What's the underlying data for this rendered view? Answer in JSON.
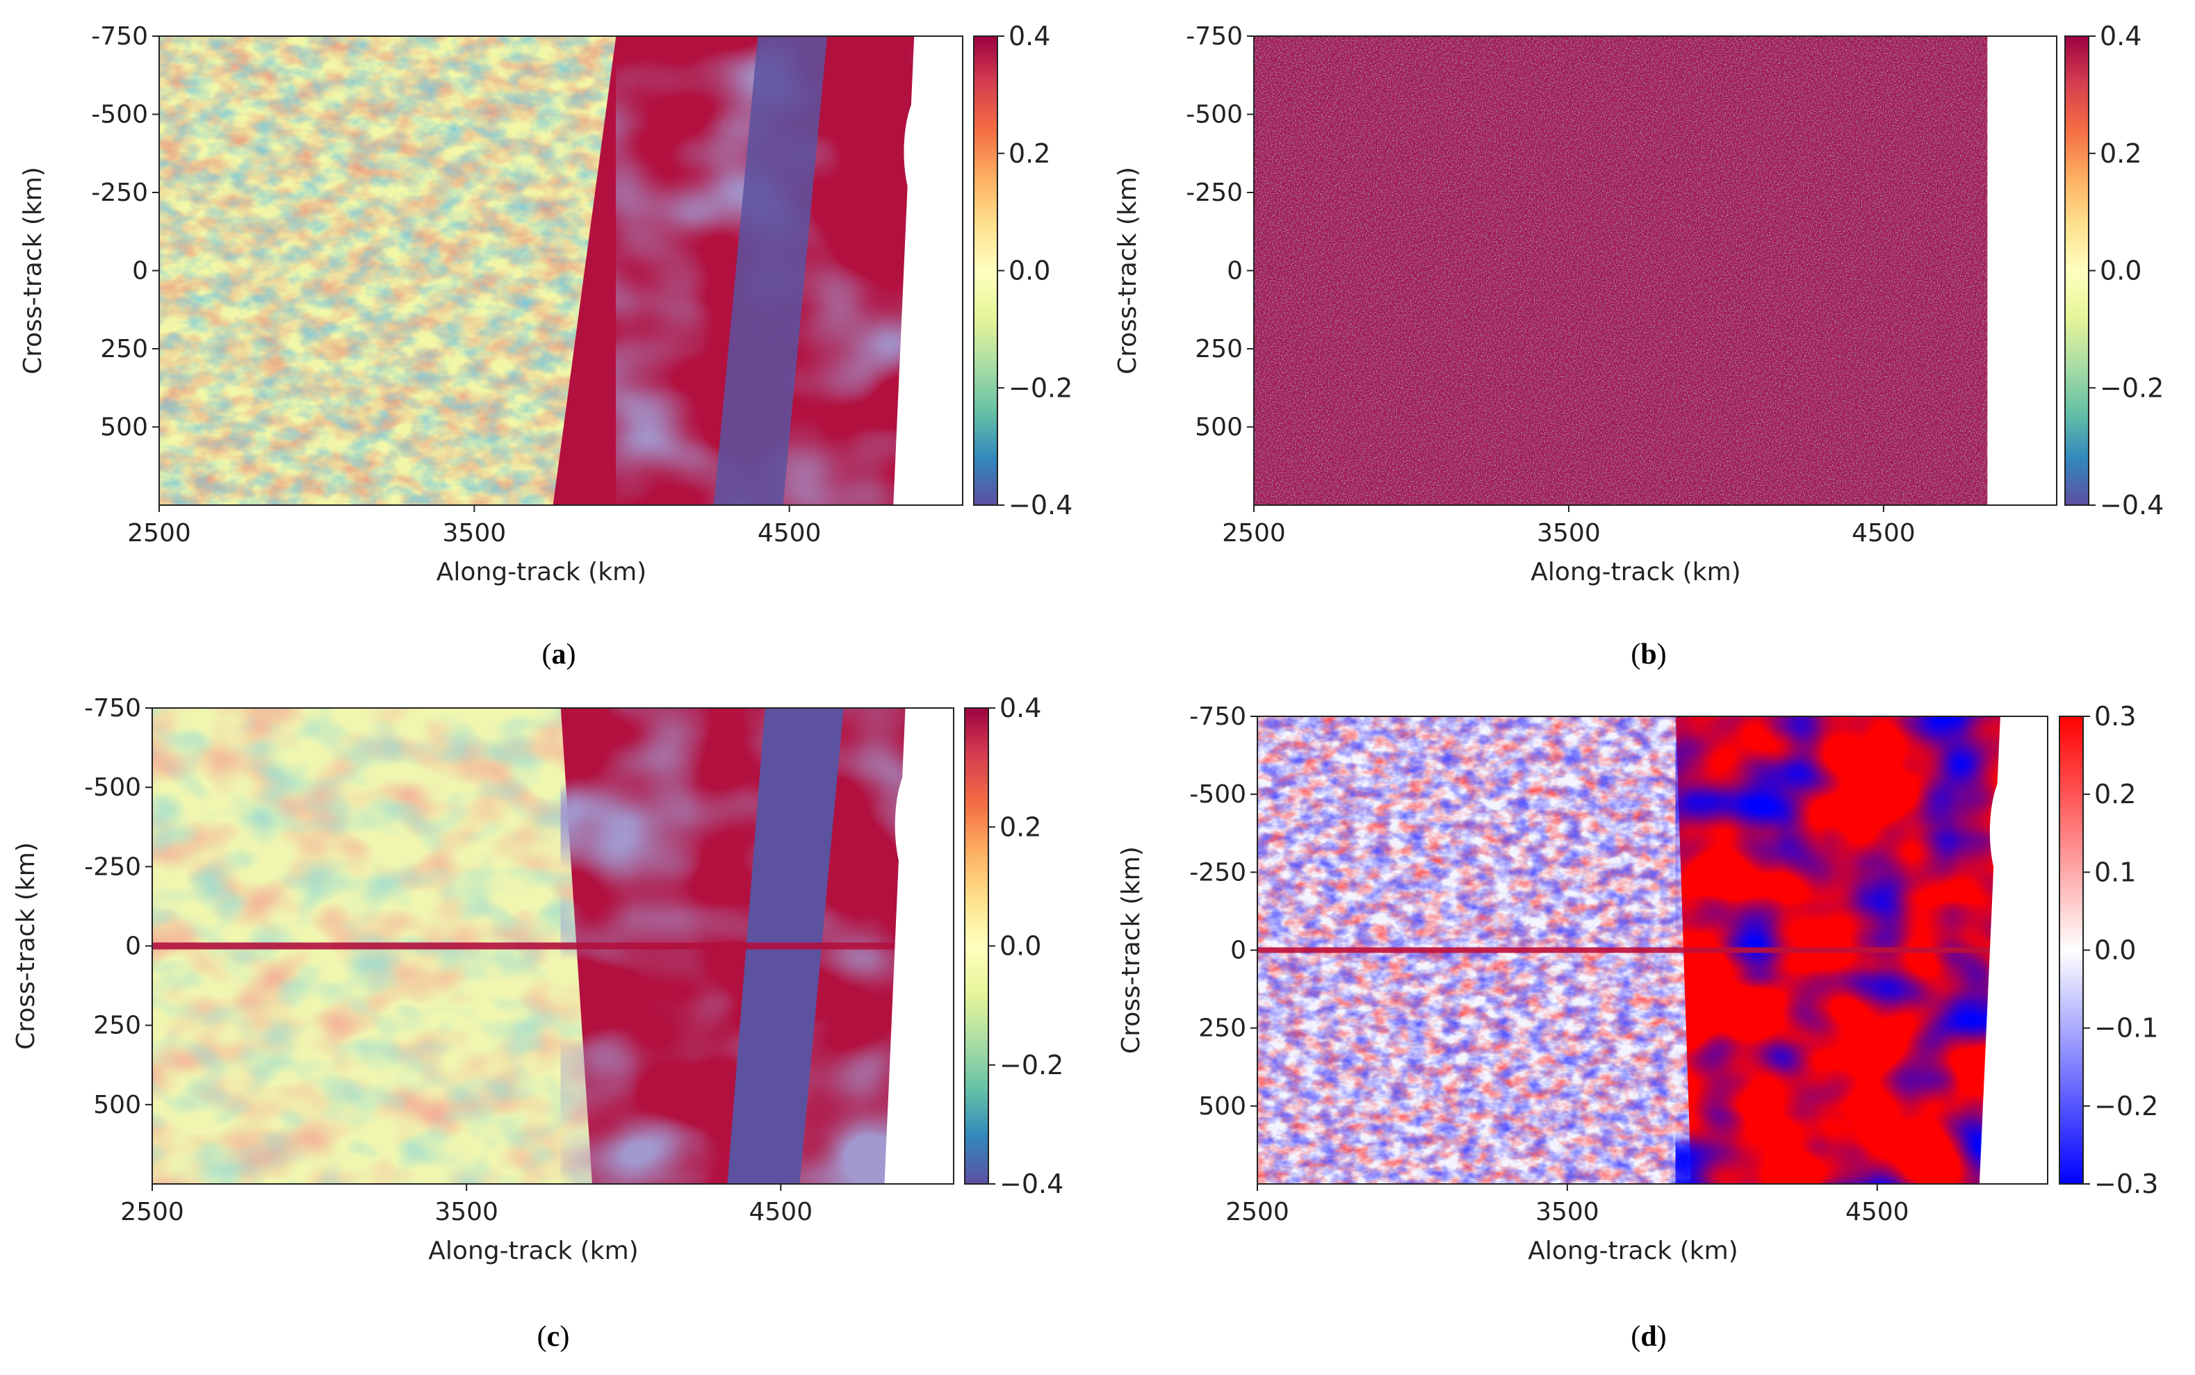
{
  "chart_data": [
    {
      "type": "heatmap",
      "panel_label": "a",
      "xlabel": "Along-track (km)",
      "ylabel": "Cross-track (km)",
      "xlim": [
        2500,
        5050
      ],
      "ylim": [
        -750,
        750
      ],
      "xticks": [
        "2500",
        "3500",
        "4500"
      ],
      "yticks": [
        "-750",
        "-500",
        "-250",
        "0",
        "250",
        "500"
      ],
      "colorbar": {
        "min": -0.4,
        "max": 0.4,
        "colormap": "Spectral_r",
        "ticks": [
          "0.4",
          "0.2",
          "0.0",
          "−0.2",
          "−0.4"
        ]
      }
    },
    {
      "type": "heatmap",
      "panel_label": "b",
      "xlabel": "Along-track (km)",
      "ylabel": "Cross-track (km)",
      "xlim": [
        2500,
        5050
      ],
      "ylim": [
        -750,
        750
      ],
      "xticks": [
        "2500",
        "3500",
        "4500"
      ],
      "yticks": [
        "-750",
        "-500",
        "-250",
        "0",
        "250",
        "500"
      ],
      "colorbar": {
        "min": -0.4,
        "max": 0.4,
        "colormap": "Spectral_r",
        "ticks": [
          "0.4",
          "0.2",
          "0.0",
          "−0.2",
          "−0.4"
        ]
      }
    },
    {
      "type": "heatmap",
      "panel_label": "c",
      "xlabel": "Along-track (km)",
      "ylabel": "Cross-track (km)",
      "xlim": [
        2500,
        5050
      ],
      "ylim": [
        -750,
        750
      ],
      "xticks": [
        "2500",
        "3500",
        "4500"
      ],
      "yticks": [
        "-750",
        "-500",
        "-250",
        "0",
        "250",
        "500"
      ],
      "colorbar": {
        "min": -0.4,
        "max": 0.4,
        "colormap": "Spectral_r",
        "ticks": [
          "0.4",
          "0.2",
          "0.0",
          "−0.2",
          "−0.4"
        ]
      }
    },
    {
      "type": "heatmap",
      "panel_label": "d",
      "xlabel": "Along-track (km)",
      "ylabel": "Cross-track (km)",
      "xlim": [
        2500,
        5050
      ],
      "ylim": [
        -750,
        750
      ],
      "xticks": [
        "2500",
        "3500",
        "4500"
      ],
      "yticks": [
        "-750",
        "-500",
        "-250",
        "0",
        "250",
        "500"
      ],
      "colorbar": {
        "min": -0.3,
        "max": 0.3,
        "colormap": "bwr",
        "ticks": [
          "0.3",
          "0.2",
          "0.1",
          "0.0",
          "−0.1",
          "−0.2",
          "−0.3"
        ]
      }
    }
  ],
  "colors": {
    "deep_red": "#b2103f",
    "deep_blue_purple": "#5c52a0",
    "bwr_red": "#ff0000",
    "bwr_blue": "#0000ff"
  }
}
